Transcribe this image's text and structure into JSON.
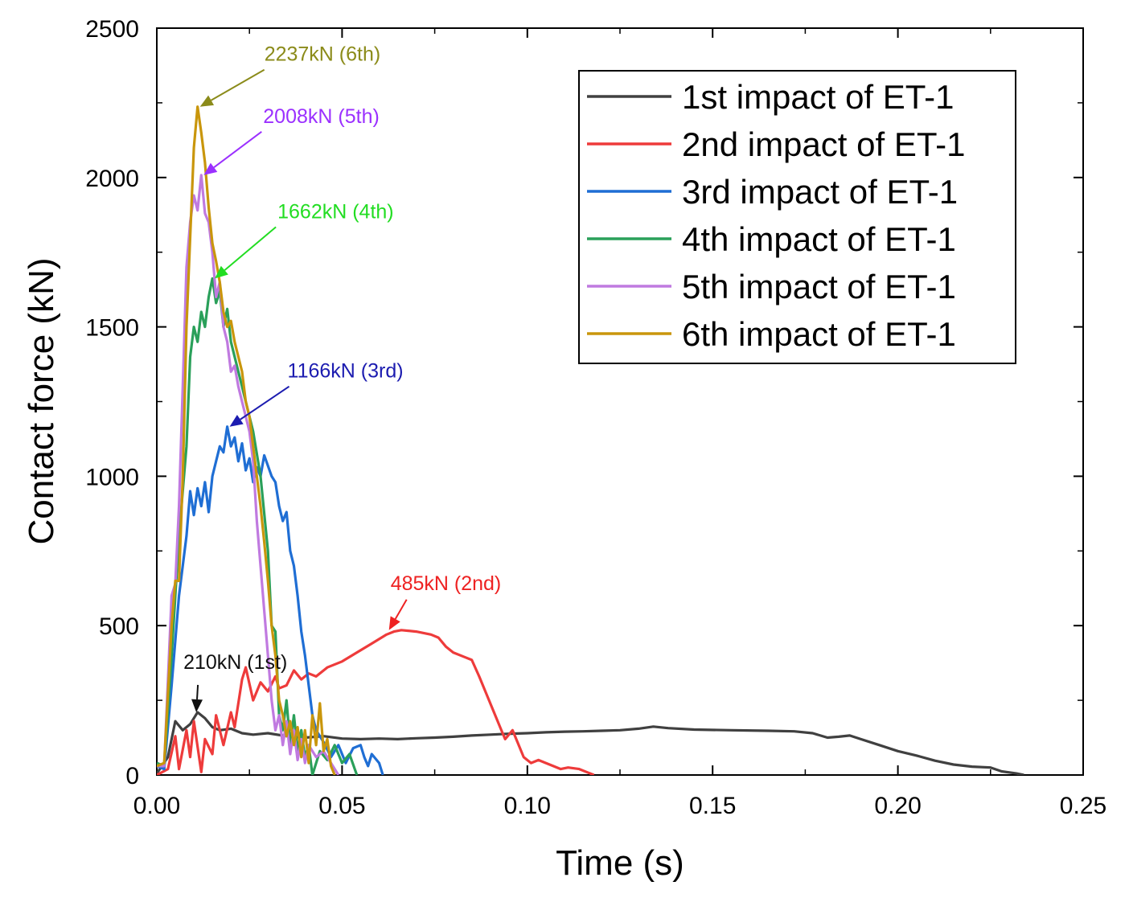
{
  "chart_data": {
    "type": "line",
    "title": "",
    "xlabel": "Time (s)",
    "ylabel": "Contact force (kN)",
    "xlim": [
      0,
      0.25
    ],
    "ylim": [
      0,
      2500
    ],
    "xticks": [
      "0.00",
      "0.05",
      "0.10",
      "0.15",
      "0.20",
      "0.25"
    ],
    "yticks": [
      "0",
      "500",
      "1000",
      "1500",
      "2000",
      "2500"
    ],
    "grid": false,
    "legend_position": "top-right",
    "series": [
      {
        "name": "1st impact of ET-1",
        "color": "#404040",
        "points": [
          [
            0,
            5
          ],
          [
            0.003,
            60
          ],
          [
            0.005,
            180
          ],
          [
            0.007,
            150
          ],
          [
            0.009,
            170
          ],
          [
            0.011,
            210
          ],
          [
            0.013,
            190
          ],
          [
            0.015,
            160
          ],
          [
            0.017,
            150
          ],
          [
            0.02,
            155
          ],
          [
            0.023,
            140
          ],
          [
            0.026,
            135
          ],
          [
            0.03,
            140
          ],
          [
            0.035,
            130
          ],
          [
            0.04,
            125
          ],
          [
            0.045,
            130
          ],
          [
            0.05,
            122
          ],
          [
            0.055,
            120
          ],
          [
            0.06,
            122
          ],
          [
            0.065,
            120
          ],
          [
            0.07,
            123
          ],
          [
            0.075,
            125
          ],
          [
            0.08,
            128
          ],
          [
            0.085,
            132
          ],
          [
            0.09,
            135
          ],
          [
            0.095,
            138
          ],
          [
            0.1,
            140
          ],
          [
            0.105,
            143
          ],
          [
            0.11,
            145
          ],
          [
            0.115,
            146
          ],
          [
            0.12,
            148
          ],
          [
            0.125,
            150
          ],
          [
            0.13,
            155
          ],
          [
            0.134,
            162
          ],
          [
            0.138,
            157
          ],
          [
            0.145,
            152
          ],
          [
            0.155,
            150
          ],
          [
            0.165,
            148
          ],
          [
            0.172,
            146
          ],
          [
            0.177,
            140
          ],
          [
            0.181,
            125
          ],
          [
            0.184,
            128
          ],
          [
            0.187,
            132
          ],
          [
            0.19,
            120
          ],
          [
            0.195,
            100
          ],
          [
            0.2,
            80
          ],
          [
            0.205,
            65
          ],
          [
            0.21,
            48
          ],
          [
            0.215,
            35
          ],
          [
            0.22,
            28
          ],
          [
            0.225,
            25
          ],
          [
            0.228,
            12
          ],
          [
            0.232,
            5
          ],
          [
            0.234,
            0
          ]
        ]
      },
      {
        "name": "2nd impact of ET-1",
        "color": "#ee3b3b",
        "points": [
          [
            0,
            0
          ],
          [
            0.003,
            20
          ],
          [
            0.005,
            130
          ],
          [
            0.006,
            20
          ],
          [
            0.008,
            150
          ],
          [
            0.009,
            60
          ],
          [
            0.01,
            180
          ],
          [
            0.012,
            10
          ],
          [
            0.013,
            120
          ],
          [
            0.015,
            70
          ],
          [
            0.016,
            200
          ],
          [
            0.018,
            100
          ],
          [
            0.02,
            210
          ],
          [
            0.021,
            160
          ],
          [
            0.023,
            320
          ],
          [
            0.024,
            360
          ],
          [
            0.026,
            250
          ],
          [
            0.028,
            310
          ],
          [
            0.03,
            280
          ],
          [
            0.032,
            330
          ],
          [
            0.033,
            290
          ],
          [
            0.035,
            300
          ],
          [
            0.037,
            350
          ],
          [
            0.039,
            320
          ],
          [
            0.041,
            340
          ],
          [
            0.043,
            330
          ],
          [
            0.046,
            360
          ],
          [
            0.05,
            380
          ],
          [
            0.054,
            410
          ],
          [
            0.058,
            440
          ],
          [
            0.062,
            470
          ],
          [
            0.064,
            480
          ],
          [
            0.066,
            485
          ],
          [
            0.07,
            480
          ],
          [
            0.074,
            470
          ],
          [
            0.076,
            460
          ],
          [
            0.078,
            430
          ],
          [
            0.08,
            410
          ],
          [
            0.083,
            395
          ],
          [
            0.085,
            385
          ],
          [
            0.087,
            330
          ],
          [
            0.089,
            270
          ],
          [
            0.091,
            210
          ],
          [
            0.093,
            150
          ],
          [
            0.094,
            120
          ],
          [
            0.096,
            150
          ],
          [
            0.097,
            120
          ],
          [
            0.099,
            60
          ],
          [
            0.101,
            40
          ],
          [
            0.103,
            50
          ],
          [
            0.105,
            40
          ],
          [
            0.107,
            30
          ],
          [
            0.109,
            20
          ],
          [
            0.111,
            25
          ],
          [
            0.114,
            20
          ],
          [
            0.116,
            10
          ],
          [
            0.118,
            0
          ]
        ]
      },
      {
        "name": "3rd impact of ET-1",
        "color": "#1f6ed4",
        "points": [
          [
            0,
            30
          ],
          [
            0.002,
            20
          ],
          [
            0.004,
            300
          ],
          [
            0.006,
            600
          ],
          [
            0.008,
            800
          ],
          [
            0.009,
            950
          ],
          [
            0.01,
            870
          ],
          [
            0.011,
            960
          ],
          [
            0.012,
            900
          ],
          [
            0.013,
            980
          ],
          [
            0.014,
            880
          ],
          [
            0.015,
            1000
          ],
          [
            0.016,
            1050
          ],
          [
            0.017,
            1100
          ],
          [
            0.018,
            1080
          ],
          [
            0.019,
            1166
          ],
          [
            0.02,
            1100
          ],
          [
            0.021,
            1130
          ],
          [
            0.022,
            1050
          ],
          [
            0.023,
            1110
          ],
          [
            0.024,
            1020
          ],
          [
            0.025,
            1060
          ],
          [
            0.026,
            980
          ],
          [
            0.027,
            1030
          ],
          [
            0.028,
            1000
          ],
          [
            0.029,
            1070
          ],
          [
            0.031,
            1000
          ],
          [
            0.032,
            980
          ],
          [
            0.033,
            900
          ],
          [
            0.034,
            850
          ],
          [
            0.035,
            880
          ],
          [
            0.036,
            750
          ],
          [
            0.037,
            700
          ],
          [
            0.038,
            600
          ],
          [
            0.039,
            480
          ],
          [
            0.04,
            400
          ],
          [
            0.041,
            300
          ],
          [
            0.042,
            200
          ],
          [
            0.043,
            150
          ],
          [
            0.045,
            110
          ],
          [
            0.047,
            60
          ],
          [
            0.049,
            100
          ],
          [
            0.051,
            40
          ],
          [
            0.053,
            90
          ],
          [
            0.055,
            100
          ],
          [
            0.056,
            60
          ],
          [
            0.057,
            30
          ],
          [
            0.058,
            70
          ],
          [
            0.06,
            40
          ],
          [
            0.061,
            0
          ]
        ]
      },
      {
        "name": "4th impact of ET-1",
        "color": "#2aa05a",
        "points": [
          [
            0,
            40
          ],
          [
            0.002,
            30
          ],
          [
            0.004,
            400
          ],
          [
            0.006,
            800
          ],
          [
            0.008,
            1100
          ],
          [
            0.009,
            1400
          ],
          [
            0.01,
            1500
          ],
          [
            0.011,
            1450
          ],
          [
            0.012,
            1550
          ],
          [
            0.013,
            1500
          ],
          [
            0.014,
            1600
          ],
          [
            0.015,
            1662
          ],
          [
            0.016,
            1580
          ],
          [
            0.017,
            1620
          ],
          [
            0.018,
            1500
          ],
          [
            0.019,
            1560
          ],
          [
            0.02,
            1450
          ],
          [
            0.022,
            1350
          ],
          [
            0.024,
            1250
          ],
          [
            0.026,
            1150
          ],
          [
            0.028,
            1000
          ],
          [
            0.03,
            750
          ],
          [
            0.031,
            500
          ],
          [
            0.032,
            480
          ],
          [
            0.033,
            200
          ],
          [
            0.034,
            150
          ],
          [
            0.035,
            250
          ],
          [
            0.036,
            100
          ],
          [
            0.037,
            200
          ],
          [
            0.038,
            80
          ],
          [
            0.039,
            150
          ],
          [
            0.04,
            60
          ],
          [
            0.041,
            100
          ],
          [
            0.042,
            0
          ],
          [
            0.044,
            80
          ],
          [
            0.046,
            50
          ],
          [
            0.048,
            100
          ],
          [
            0.05,
            40
          ],
          [
            0.052,
            70
          ],
          [
            0.054,
            0
          ]
        ]
      },
      {
        "name": "5th impact of ET-1",
        "color": "#c07ae0",
        "points": [
          [
            0,
            30
          ],
          [
            0.002,
            30
          ],
          [
            0.004,
            600
          ],
          [
            0.005,
            640
          ],
          [
            0.006,
            900
          ],
          [
            0.007,
            1300
          ],
          [
            0.008,
            1700
          ],
          [
            0.009,
            1850
          ],
          [
            0.01,
            1940
          ],
          [
            0.011,
            1890
          ],
          [
            0.012,
            2008
          ],
          [
            0.013,
            1880
          ],
          [
            0.014,
            1850
          ],
          [
            0.015,
            1750
          ],
          [
            0.016,
            1600
          ],
          [
            0.017,
            1650
          ],
          [
            0.018,
            1500
          ],
          [
            0.019,
            1450
          ],
          [
            0.02,
            1350
          ],
          [
            0.021,
            1370
          ],
          [
            0.022,
            1300
          ],
          [
            0.023,
            1250
          ],
          [
            0.024,
            1200
          ],
          [
            0.025,
            1150
          ],
          [
            0.026,
            1050
          ],
          [
            0.027,
            850
          ],
          [
            0.028,
            700
          ],
          [
            0.029,
            550
          ],
          [
            0.03,
            400
          ],
          [
            0.031,
            250
          ],
          [
            0.032,
            150
          ],
          [
            0.033,
            200
          ],
          [
            0.034,
            100
          ],
          [
            0.035,
            180
          ],
          [
            0.036,
            70
          ],
          [
            0.037,
            150
          ],
          [
            0.038,
            50
          ],
          [
            0.039,
            120
          ],
          [
            0.04,
            40
          ],
          [
            0.041,
            100
          ],
          [
            0.043,
            60
          ],
          [
            0.045,
            80
          ],
          [
            0.047,
            40
          ],
          [
            0.049,
            0
          ]
        ]
      },
      {
        "name": "6th impact of ET-1",
        "color": "#c9960c",
        "points": [
          [
            0,
            30
          ],
          [
            0.002,
            40
          ],
          [
            0.004,
            500
          ],
          [
            0.005,
            650
          ],
          [
            0.006,
            650
          ],
          [
            0.007,
            1000
          ],
          [
            0.008,
            1500
          ],
          [
            0.009,
            1800
          ],
          [
            0.01,
            2100
          ],
          [
            0.011,
            2237
          ],
          [
            0.012,
            2150
          ],
          [
            0.013,
            2050
          ],
          [
            0.014,
            1900
          ],
          [
            0.015,
            1780
          ],
          [
            0.016,
            1720
          ],
          [
            0.017,
            1650
          ],
          [
            0.018,
            1550
          ],
          [
            0.019,
            1500
          ],
          [
            0.02,
            1520
          ],
          [
            0.021,
            1450
          ],
          [
            0.022,
            1400
          ],
          [
            0.023,
            1350
          ],
          [
            0.024,
            1250
          ],
          [
            0.025,
            1200
          ],
          [
            0.026,
            1100
          ],
          [
            0.027,
            1000
          ],
          [
            0.028,
            900
          ],
          [
            0.029,
            780
          ],
          [
            0.03,
            650
          ],
          [
            0.031,
            500
          ],
          [
            0.032,
            400
          ],
          [
            0.033,
            250
          ],
          [
            0.034,
            200
          ],
          [
            0.035,
            130
          ],
          [
            0.036,
            180
          ],
          [
            0.037,
            100
          ],
          [
            0.038,
            160
          ],
          [
            0.039,
            60
          ],
          [
            0.04,
            150
          ],
          [
            0.041,
            40
          ],
          [
            0.042,
            200
          ],
          [
            0.043,
            100
          ],
          [
            0.044,
            240
          ],
          [
            0.045,
            80
          ],
          [
            0.046,
            120
          ],
          [
            0.047,
            30
          ],
          [
            0.048,
            0
          ]
        ]
      }
    ],
    "annotations": [
      {
        "text": "2237kN (6th)",
        "color": "#8b8b1a",
        "x": 0.011,
        "y": 2237
      },
      {
        "text": "2008kN (5th)",
        "color": "#9b30ff",
        "x": 0.012,
        "y": 2008
      },
      {
        "text": "1662kN (4th)",
        "color": "#22dd22",
        "x": 0.015,
        "y": 1662
      },
      {
        "text": "1166kN (3rd)",
        "color": "#1c1cb0",
        "x": 0.019,
        "y": 1166
      },
      {
        "text": "485kN (2nd)",
        "color": "#ee2222",
        "x": 0.062,
        "y": 485
      },
      {
        "text": "210kN (1st)",
        "color": "#111111",
        "x": 0.01,
        "y": 210
      }
    ]
  }
}
